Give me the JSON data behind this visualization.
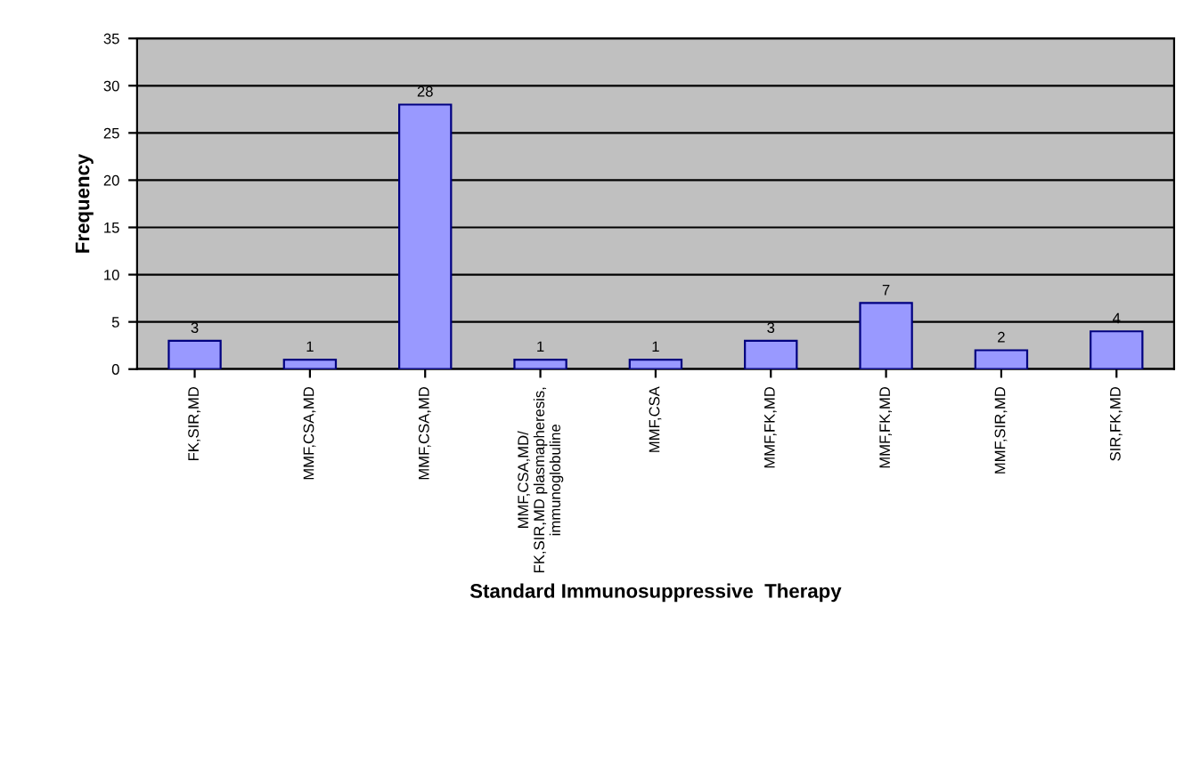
{
  "chart_data": {
    "type": "bar",
    "xlabel": "Standard Immunosuppressive  Therapy",
    "ylabel": "Frequency",
    "categories": [
      "FK,SIR,MD",
      "MMF,CSA,MD",
      "MMF,CSA,MD",
      "MMF,CSA,MD/\nFK,SIR,MD plasmapheresis,\nimmunoglobuline",
      "MMF,CSA",
      "MMF,FK,MD",
      "MMF,FK,MD",
      "MMF,SIR,MD",
      "SIR,FK,MD"
    ],
    "values": [
      3,
      1,
      28,
      1,
      1,
      3,
      7,
      2,
      4
    ],
    "color": "#9999ff",
    "ylim": [
      0,
      35
    ],
    "yticks": [
      0,
      5,
      10,
      15,
      20,
      25,
      30,
      35
    ],
    "grid": "y",
    "data_labels": true
  }
}
